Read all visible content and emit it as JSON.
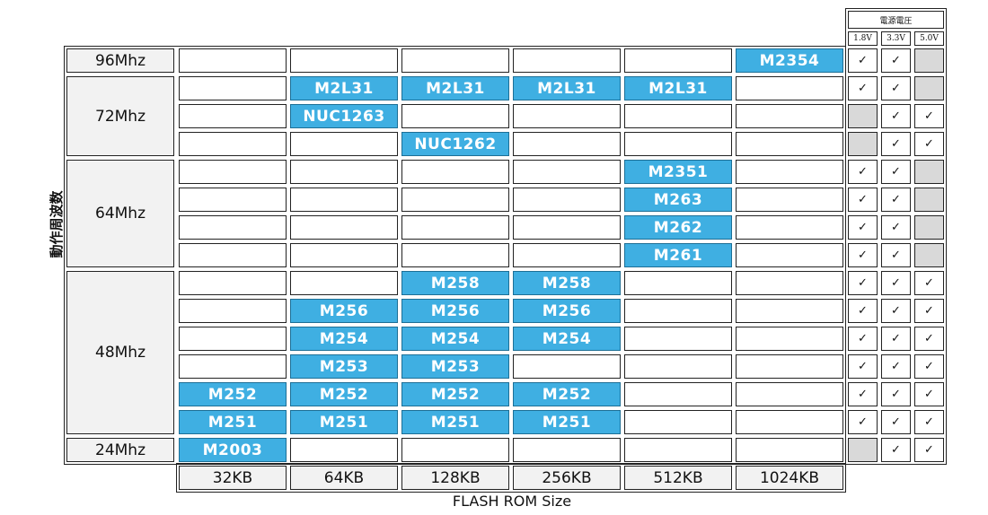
{
  "y_axis_label": "動作周波数",
  "x_axis_label": "FLASH ROM Size",
  "voltage_panel": {
    "title": "電源電圧",
    "columns": [
      "1.8V",
      "3.3V",
      "5.0V"
    ]
  },
  "flash_sizes": [
    "32KB",
    "64KB",
    "128KB",
    "256KB",
    "512KB",
    "1024KB"
  ],
  "frequency_groups": [
    {
      "label": "96Mhz",
      "rows": 1
    },
    {
      "label": "72Mhz",
      "rows": 3
    },
    {
      "label": "64Mhz",
      "rows": 4
    },
    {
      "label": "48Mhz",
      "rows": 6
    },
    {
      "label": "24Mhz",
      "rows": 1
    }
  ],
  "rows": [
    {
      "chips": [
        null,
        null,
        null,
        null,
        null,
        "M2354"
      ],
      "voltage": [
        true,
        true,
        null
      ]
    },
    {
      "chips": [
        null,
        "M2L31",
        "M2L31",
        "M2L31",
        "M2L31",
        null
      ],
      "voltage": [
        true,
        true,
        null
      ]
    },
    {
      "chips": [
        null,
        "NUC1263",
        null,
        null,
        null,
        null
      ],
      "voltage": [
        null,
        true,
        true
      ]
    },
    {
      "chips": [
        null,
        null,
        "NUC1262",
        null,
        null,
        null
      ],
      "voltage": [
        null,
        true,
        true
      ]
    },
    {
      "chips": [
        null,
        null,
        null,
        null,
        "M2351",
        null
      ],
      "voltage": [
        true,
        true,
        null
      ]
    },
    {
      "chips": [
        null,
        null,
        null,
        null,
        "M263",
        null
      ],
      "voltage": [
        true,
        true,
        null
      ]
    },
    {
      "chips": [
        null,
        null,
        null,
        null,
        "M262",
        null
      ],
      "voltage": [
        true,
        true,
        null
      ]
    },
    {
      "chips": [
        null,
        null,
        null,
        null,
        "M261",
        null
      ],
      "voltage": [
        true,
        true,
        null
      ]
    },
    {
      "chips": [
        null,
        null,
        "M258",
        "M258",
        null,
        null
      ],
      "voltage": [
        true,
        true,
        true
      ]
    },
    {
      "chips": [
        null,
        "M256",
        "M256",
        "M256",
        null,
        null
      ],
      "voltage": [
        true,
        true,
        true
      ]
    },
    {
      "chips": [
        null,
        "M254",
        "M254",
        "M254",
        null,
        null
      ],
      "voltage": [
        true,
        true,
        true
      ]
    },
    {
      "chips": [
        null,
        "M253",
        "M253",
        null,
        null,
        null
      ],
      "voltage": [
        true,
        true,
        true
      ]
    },
    {
      "chips": [
        "M252",
        "M252",
        "M252",
        "M252",
        null,
        null
      ],
      "voltage": [
        true,
        true,
        true
      ]
    },
    {
      "chips": [
        "M251",
        "M251",
        "M251",
        "M251",
        null,
        null
      ],
      "voltage": [
        true,
        true,
        true
      ]
    },
    {
      "chips": [
        "M2003",
        null,
        null,
        null,
        null,
        null
      ],
      "voltage": [
        null,
        true,
        true
      ]
    }
  ],
  "check_symbol": "✓",
  "colors": {
    "chip_fill": "#3fafe2",
    "chip_text": "#ffffff",
    "unsupported_cell": "#d9d9d9",
    "label_cell": "#f2f2f2"
  }
}
